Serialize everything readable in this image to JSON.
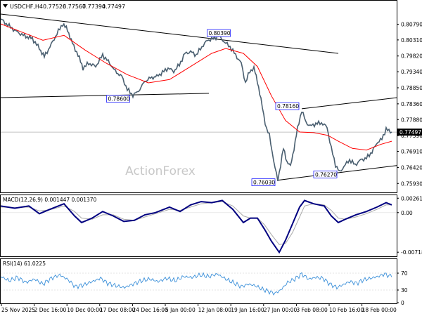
{
  "chart_data": {
    "type": "line",
    "symbol_header": "USDCHF,H4",
    "ohlc_header": [
      "0.77526",
      "0.77567",
      "0.77394",
      "0.77497"
    ],
    "watermark": "ActionForex",
    "price_axis": {
      "ylim": [
        0.757,
        0.814
      ],
      "ticks": [
        "0.80790",
        "0.80310",
        "0.79820",
        "0.79340",
        "0.78850",
        "0.78360",
        "0.77880",
        "0.77390",
        "0.76910",
        "0.76420",
        "0.75930"
      ],
      "current_price": "0.77497",
      "current_color": "#000000"
    },
    "time_axis": {
      "labels": [
        "25 Nov 2025",
        "2 Dec 16:00",
        "10 Dec 00:00",
        "17 Dec 08:00",
        "24 Dec 16:00",
        "5 Jan 00:00",
        "12 Jan 08:00",
        "19 Jan 16:00",
        "27 Jan 00:00",
        "3 Feb 08:00",
        "10 Feb 16:00",
        "18 Feb 00:00"
      ]
    },
    "price_series": [
      [
        0,
        0.8095
      ],
      [
        8,
        0.808
      ],
      [
        20,
        0.806
      ],
      [
        32,
        0.8045
      ],
      [
        45,
        0.8035
      ],
      [
        55,
        0.8005
      ],
      [
        62,
        0.798
      ],
      [
        70,
        0.801
      ],
      [
        80,
        0.805
      ],
      [
        88,
        0.808
      ],
      [
        95,
        0.8062
      ],
      [
        102,
        0.802
      ],
      [
        110,
        0.7985
      ],
      [
        117,
        0.7945
      ],
      [
        125,
        0.796
      ],
      [
        135,
        0.795
      ],
      [
        145,
        0.7985
      ],
      [
        155,
        0.796
      ],
      [
        163,
        0.7935
      ],
      [
        172,
        0.792
      ],
      [
        180,
        0.788
      ],
      [
        188,
        0.7862
      ],
      [
        196,
        0.7875
      ],
      [
        205,
        0.7905
      ],
      [
        213,
        0.7915
      ],
      [
        222,
        0.792
      ],
      [
        230,
        0.7932
      ],
      [
        238,
        0.7945
      ],
      [
        246,
        0.7935
      ],
      [
        254,
        0.7955
      ],
      [
        262,
        0.799
      ],
      [
        270,
        0.7995
      ],
      [
        278,
        0.7985
      ],
      [
        286,
        0.801
      ],
      [
        294,
        0.803
      ],
      [
        302,
        0.8035
      ],
      [
        310,
        0.8043
      ],
      [
        318,
        0.8025
      ],
      [
        326,
        0.801
      ],
      [
        334,
        0.7985
      ],
      [
        342,
        0.796
      ],
      [
        348,
        0.79
      ],
      [
        354,
        0.7935
      ],
      [
        360,
        0.7945
      ],
      [
        365,
        0.7905
      ],
      [
        370,
        0.785
      ],
      [
        374,
        0.78
      ],
      [
        378,
        0.776
      ],
      [
        382,
        0.774
      ],
      [
        386,
        0.769
      ],
      [
        390,
        0.764
      ],
      [
        394,
        0.7603
      ],
      [
        398,
        0.765
      ],
      [
        402,
        0.77
      ],
      [
        407,
        0.766
      ],
      [
        412,
        0.7645
      ],
      [
        417,
        0.77
      ],
      [
        422,
        0.776
      ],
      [
        428,
        0.7816
      ],
      [
        434,
        0.778
      ],
      [
        440,
        0.7768
      ],
      [
        448,
        0.7775
      ],
      [
        456,
        0.7778
      ],
      [
        464,
        0.7765
      ],
      [
        470,
        0.77
      ],
      [
        476,
        0.765
      ],
      [
        482,
        0.7627
      ],
      [
        488,
        0.7645
      ],
      [
        496,
        0.7665
      ],
      [
        504,
        0.765
      ],
      [
        512,
        0.7665
      ],
      [
        520,
        0.767
      ],
      [
        528,
        0.769
      ],
      [
        536,
        0.772
      ],
      [
        542,
        0.7728
      ],
      [
        548,
        0.776
      ],
      [
        552,
        0.7752
      ],
      [
        556,
        0.775
      ]
    ],
    "moving_average": [
      [
        0,
        0.808
      ],
      [
        30,
        0.8055
      ],
      [
        60,
        0.803
      ],
      [
        90,
        0.8045
      ],
      [
        120,
        0.8
      ],
      [
        150,
        0.796
      ],
      [
        180,
        0.7925
      ],
      [
        210,
        0.79
      ],
      [
        240,
        0.791
      ],
      [
        270,
        0.795
      ],
      [
        300,
        0.799
      ],
      [
        320,
        0.8005
      ],
      [
        345,
        0.799
      ],
      [
        365,
        0.795
      ],
      [
        385,
        0.786
      ],
      [
        405,
        0.7785
      ],
      [
        425,
        0.775
      ],
      [
        445,
        0.7748
      ],
      [
        465,
        0.774
      ],
      [
        480,
        0.7722
      ],
      [
        500,
        0.77
      ],
      [
        520,
        0.7695
      ],
      [
        540,
        0.7712
      ],
      [
        556,
        0.7722
      ]
    ],
    "ma_color": "#ff0000",
    "price_color": "#4a5f70",
    "annotations": [
      {
        "label": "0.78600",
        "x": 185,
        "y": 0.786
      },
      {
        "label": "0.80390",
        "x": 310,
        "y": 0.8039
      },
      {
        "label": "0.78160",
        "x": 428,
        "y": 0.7816
      },
      {
        "label": "0.76030",
        "x": 394,
        "y": 0.7603
      },
      {
        "label": "0.76270",
        "x": 482,
        "y": 0.7627
      }
    ],
    "trendlines": [
      {
        "from": [
          0,
          0.811
        ],
        "to": [
          480,
          0.799
        ],
        "color": "#000000"
      },
      {
        "from": [
          0,
          0.7855
        ],
        "to": [
          296,
          0.7868
        ],
        "color": "#000000"
      },
      {
        "from": [
          428,
          0.7821
        ],
        "to": [
          564,
          0.7855
        ],
        "color": "#000000"
      },
      {
        "from": [
          394,
          0.7603
        ],
        "to": [
          564,
          0.7648
        ],
        "color": "#000000"
      }
    ],
    "macd": {
      "label": "MACD(12,26,9) 0.001447 0.001370",
      "ylim": [
        -0.0078,
        0.0029
      ],
      "ticks": [
        "0.002613",
        "0.00",
        "-0.007184"
      ],
      "main_color": "#000080",
      "signal_color": "#aaaaaa",
      "main": [
        [
          0,
          0.0012
        ],
        [
          20,
          0.0008
        ],
        [
          40,
          0.0012
        ],
        [
          55,
          -0.0002
        ],
        [
          70,
          0.0006
        ],
        [
          90,
          0.0016
        ],
        [
          105,
          -0.0006
        ],
        [
          115,
          -0.0018
        ],
        [
          130,
          -0.001
        ],
        [
          145,
          0.0002
        ],
        [
          160,
          -0.0006
        ],
        [
          175,
          -0.0016
        ],
        [
          190,
          -0.0014
        ],
        [
          205,
          -0.0004
        ],
        [
          220,
          0.0
        ],
        [
          240,
          0.001
        ],
        [
          255,
          0.0002
        ],
        [
          270,
          0.0014
        ],
        [
          285,
          0.002
        ],
        [
          300,
          0.0018
        ],
        [
          315,
          0.0022
        ],
        [
          330,
          0.0006
        ],
        [
          345,
          -0.0018
        ],
        [
          355,
          -0.001
        ],
        [
          365,
          -0.001
        ],
        [
          375,
          -0.003
        ],
        [
          385,
          -0.0052
        ],
        [
          396,
          -0.0072
        ],
        [
          405,
          -0.005
        ],
        [
          415,
          -0.002
        ],
        [
          425,
          0.001
        ],
        [
          432,
          0.0022
        ],
        [
          445,
          0.0016
        ],
        [
          460,
          0.0012
        ],
        [
          470,
          -0.0006
        ],
        [
          480,
          -0.0018
        ],
        [
          490,
          -0.0012
        ],
        [
          505,
          -0.0004
        ],
        [
          520,
          0.0002
        ],
        [
          535,
          0.001
        ],
        [
          548,
          0.0018
        ],
        [
          556,
          0.0014
        ]
      ],
      "signal": [
        [
          0,
          0.001
        ],
        [
          20,
          0.0009
        ],
        [
          40,
          0.001
        ],
        [
          55,
          0.0003
        ],
        [
          70,
          0.0005
        ],
        [
          90,
          0.0012
        ],
        [
          105,
          0.0002
        ],
        [
          115,
          -0.001
        ],
        [
          130,
          -0.0012
        ],
        [
          145,
          -0.0004
        ],
        [
          160,
          -0.0004
        ],
        [
          175,
          -0.0012
        ],
        [
          190,
          -0.0014
        ],
        [
          205,
          -0.0008
        ],
        [
          220,
          -0.0002
        ],
        [
          240,
          0.0006
        ],
        [
          255,
          0.0004
        ],
        [
          270,
          0.001
        ],
        [
          285,
          0.0016
        ],
        [
          300,
          0.0018
        ],
        [
          315,
          0.002
        ],
        [
          330,
          0.0012
        ],
        [
          345,
          -0.0006
        ],
        [
          355,
          -0.001
        ],
        [
          365,
          -0.001
        ],
        [
          375,
          -0.0022
        ],
        [
          385,
          -0.004
        ],
        [
          396,
          -0.0058
        ],
        [
          405,
          -0.0056
        ],
        [
          415,
          -0.0036
        ],
        [
          425,
          -0.0008
        ],
        [
          432,
          0.0012
        ],
        [
          445,
          0.0016
        ],
        [
          460,
          0.0014
        ],
        [
          470,
          0.0004
        ],
        [
          480,
          -0.001
        ],
        [
          490,
          -0.0012
        ],
        [
          505,
          -0.0008
        ],
        [
          520,
          -0.0002
        ],
        [
          535,
          0.0006
        ],
        [
          548,
          0.0014
        ],
        [
          556,
          0.0014
        ]
      ]
    },
    "rsi": {
      "label": "RSI(14) 61.0225",
      "ylim": [
        0,
        100
      ],
      "ticks": [
        "70",
        "30",
        "0"
      ],
      "color": "#3a8fd9",
      "values": [
        [
          0,
          62
        ],
        [
          12,
          52
        ],
        [
          24,
          60
        ],
        [
          36,
          48
        ],
        [
          48,
          56
        ],
        [
          60,
          44
        ],
        [
          72,
          58
        ],
        [
          84,
          66
        ],
        [
          96,
          54
        ],
        [
          106,
          38
        ],
        [
          118,
          42
        ],
        [
          130,
          50
        ],
        [
          142,
          58
        ],
        [
          152,
          46
        ],
        [
          164,
          40
        ],
        [
          176,
          36
        ],
        [
          188,
          44
        ],
        [
          200,
          52
        ],
        [
          212,
          56
        ],
        [
          224,
          50
        ],
        [
          236,
          58
        ],
        [
          248,
          52
        ],
        [
          260,
          62
        ],
        [
          272,
          60
        ],
        [
          284,
          66
        ],
        [
          296,
          62
        ],
        [
          308,
          68
        ],
        [
          318,
          58
        ],
        [
          330,
          48
        ],
        [
          342,
          38
        ],
        [
          352,
          44
        ],
        [
          362,
          40
        ],
        [
          372,
          32
        ],
        [
          382,
          26
        ],
        [
          390,
          22
        ],
        [
          398,
          30
        ],
        [
          408,
          48
        ],
        [
          418,
          56
        ],
        [
          428,
          68
        ],
        [
          438,
          56
        ],
        [
          448,
          60
        ],
        [
          458,
          58
        ],
        [
          468,
          44
        ],
        [
          478,
          36
        ],
        [
          486,
          42
        ],
        [
          496,
          50
        ],
        [
          506,
          46
        ],
        [
          516,
          54
        ],
        [
          526,
          58
        ],
        [
          536,
          62
        ],
        [
          546,
          68
        ],
        [
          556,
          61
        ]
      ]
    }
  }
}
